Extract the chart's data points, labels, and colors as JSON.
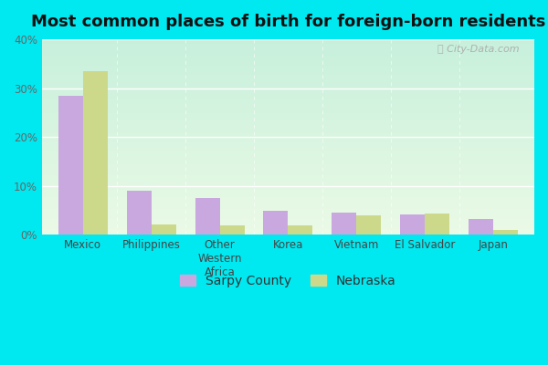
{
  "title": "Most common places of birth for foreign-born residents",
  "categories": [
    "Mexico",
    "Philippines",
    "Other\nWestern\nAfrica",
    "Korea",
    "Vietnam",
    "El Salvador",
    "Japan"
  ],
  "sarpy_county": [
    28.5,
    9.0,
    7.5,
    5.0,
    4.5,
    4.2,
    3.2
  ],
  "nebraska": [
    33.5,
    2.2,
    2.0,
    2.0,
    4.0,
    4.3,
    1.0
  ],
  "sarpy_color": "#c9a8e0",
  "nebraska_color": "#ccd98a",
  "ylim": [
    0,
    40
  ],
  "yticks": [
    0,
    10,
    20,
    30,
    40
  ],
  "ytick_labels": [
    "0%",
    "10%",
    "20%",
    "30%",
    "40%"
  ],
  "bg_outer": "#00e8f0",
  "legend_sarpy": "Sarpy County",
  "legend_nebraska": "Nebraska",
  "title_fontsize": 13,
  "bar_width": 0.36
}
